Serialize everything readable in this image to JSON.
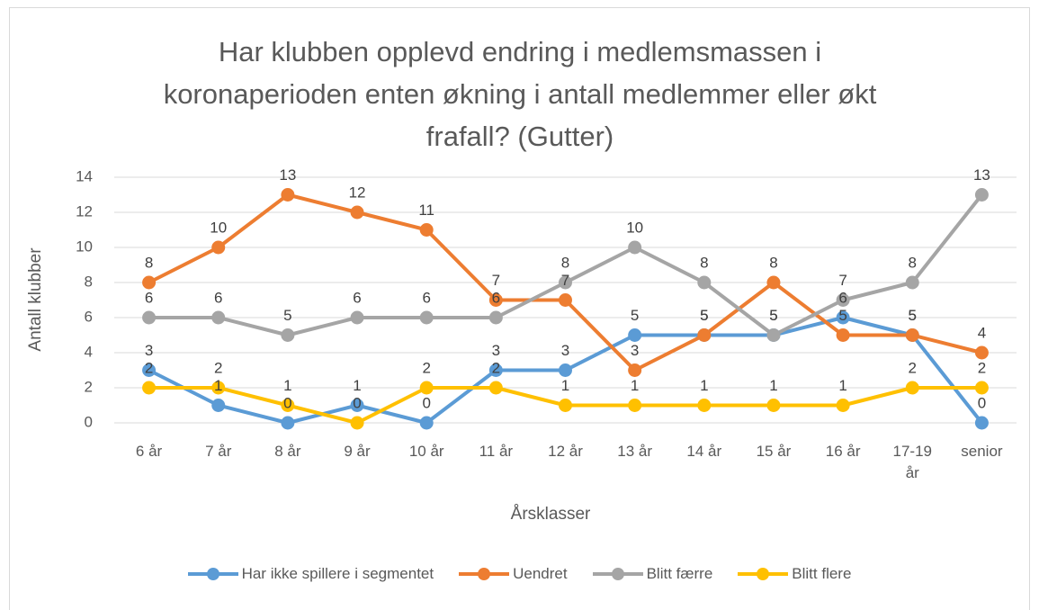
{
  "chart_data": {
    "type": "line",
    "title": "Har klubben opplevd endring i medlemsmassen i koronaperioden enten økning i antall medlemmer eller økt frafall? (Gutter)",
    "x_label": "Årsklasser",
    "y_label": "Antall klubber",
    "categories": [
      "6 år",
      "7 år",
      "8 år",
      "9 år",
      "10 år",
      "11 år",
      "12 år",
      "13 år",
      "14 år",
      "15 år",
      "16 år",
      "17-19 år",
      "senior"
    ],
    "series": [
      {
        "name": "Har ikke spillere i segmentet",
        "color": "#5b9bd5",
        "values": [
          3,
          1,
          0,
          1,
          0,
          3,
          3,
          5,
          5,
          5,
          6,
          5,
          0
        ]
      },
      {
        "name": "Uendret",
        "color": "#ed7d31",
        "values": [
          8,
          10,
          13,
          12,
          11,
          7,
          7,
          3,
          5,
          8,
          5,
          5,
          4
        ]
      },
      {
        "name": "Blitt færre",
        "color": "#a5a5a5",
        "values": [
          6,
          6,
          5,
          6,
          6,
          6,
          8,
          10,
          8,
          5,
          7,
          8,
          13
        ]
      },
      {
        "name": "Blitt flere",
        "color": "#ffc000",
        "values": [
          2,
          2,
          1,
          0,
          2,
          2,
          1,
          1,
          1,
          1,
          1,
          2,
          2
        ]
      }
    ],
    "ylim": [
      0,
      14
    ],
    "yticks": [
      0,
      2,
      4,
      6,
      8,
      10,
      12,
      14
    ],
    "grid": true,
    "legend": "bottom"
  }
}
